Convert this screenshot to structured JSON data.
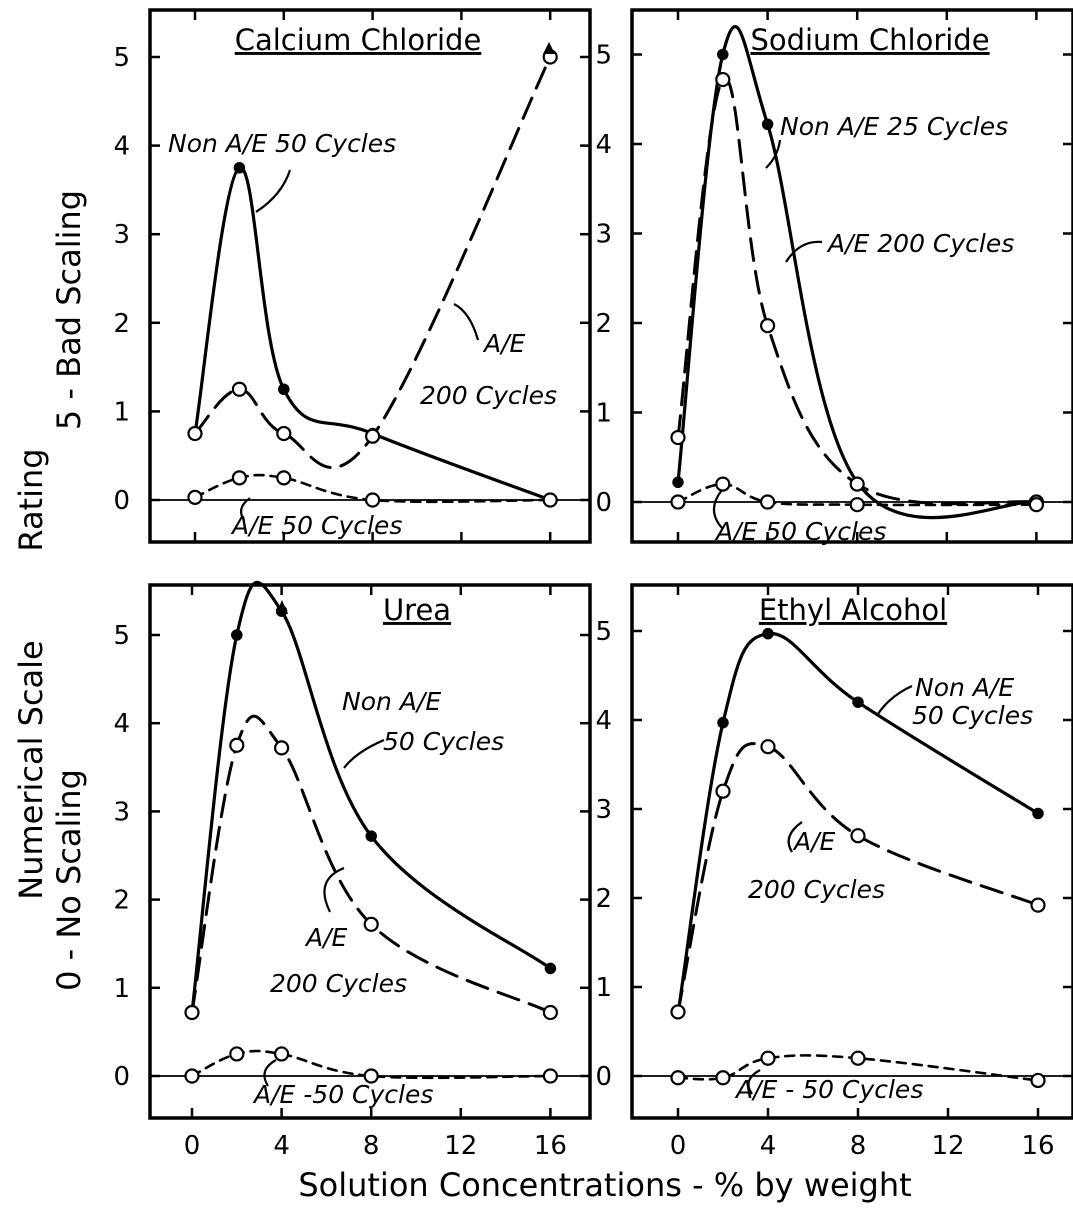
{
  "axes": {
    "xlabel": "Solution Concentrations - % by weight",
    "ylabel_lines": [
      "Rating",
      "5 - Bad Scaling",
      "Numerical Scale",
      "0 - No Scaling"
    ]
  },
  "chart_data": [
    {
      "type": "line",
      "title": "Calcium Chloride",
      "xlim": [
        -2,
        17
      ],
      "ylim": [
        -0.45,
        5.5
      ],
      "xticks": [
        0,
        4,
        8,
        12,
        16
      ],
      "yticks": [
        0,
        1,
        2,
        3,
        4,
        5
      ],
      "series": [
        {
          "name": "Non A/E 50 Cycles",
          "style": "solid",
          "marker": "filled",
          "x": [
            0,
            2,
            4,
            8,
            16
          ],
          "y": [
            0.75,
            3.75,
            1.25,
            0.75,
            0
          ]
        },
        {
          "name": "A/E 200 Cycles",
          "style": "long-dash",
          "marker": "open",
          "x": [
            0,
            2,
            4,
            8,
            16
          ],
          "y": [
            0.75,
            1.25,
            0.75,
            0.72,
            5.0
          ]
        },
        {
          "name": "A/E 50 Cycles",
          "style": "short-dash",
          "marker": "open",
          "x": [
            0,
            2,
            4,
            8,
            16
          ],
          "y": [
            0.03,
            0.25,
            0.25,
            0.0,
            0.0
          ]
        }
      ],
      "annotations": [
        "Non A/E 50 Cycles",
        "A/E",
        "200 Cycles",
        "A/E 50 Cycles"
      ]
    },
    {
      "type": "line",
      "title": "Sodium Chloride",
      "xlim": [
        -2,
        17
      ],
      "ylim": [
        -0.45,
        5.5
      ],
      "xticks": [
        0,
        4,
        8,
        12,
        16
      ],
      "yticks": [
        0,
        1,
        2,
        3,
        4,
        5
      ],
      "series": [
        {
          "name": "Non A/E 25 Cycles",
          "style": "solid",
          "marker": "filled",
          "x": [
            0,
            2,
            4,
            8,
            16
          ],
          "y": [
            0.22,
            5.0,
            4.22,
            0.22,
            0
          ]
        },
        {
          "name": "A/E 200 Cycles",
          "style": "long-dash",
          "marker": "open",
          "x": [
            0,
            2,
            4,
            8,
            16
          ],
          "y": [
            0.72,
            4.72,
            1.97,
            0.2,
            0
          ]
        },
        {
          "name": "A/E 50 Cycles",
          "style": "short-dash",
          "marker": "open",
          "x": [
            0,
            2,
            4,
            8,
            16
          ],
          "y": [
            0.0,
            0.2,
            0.0,
            -0.03,
            -0.03
          ]
        }
      ],
      "annotations": [
        "Non A/E 25 Cycles",
        "A/E 200 Cycles",
        "A/E 50 Cycles"
      ]
    },
    {
      "type": "line",
      "title": "Urea",
      "xlim": [
        -2,
        17
      ],
      "ylim": [
        -0.45,
        5.5
      ],
      "xticks": [
        0,
        4,
        8,
        12,
        16
      ],
      "yticks": [
        0,
        1,
        2,
        3,
        4,
        5
      ],
      "series": [
        {
          "name": "Non A/E 50 Cycles",
          "style": "solid",
          "marker": "filled",
          "x": [
            0,
            2,
            4,
            8,
            16
          ],
          "y": [
            0.72,
            5.0,
            5.27,
            2.72,
            1.22
          ]
        },
        {
          "name": "A/E 200 Cycles",
          "style": "long-dash",
          "marker": "open",
          "x": [
            0,
            2,
            4,
            8,
            16
          ],
          "y": [
            0.72,
            3.75,
            3.72,
            1.72,
            0.72
          ]
        },
        {
          "name": "A/E -50 Cycles",
          "style": "short-dash",
          "marker": "open",
          "x": [
            0,
            2,
            4,
            8,
            16
          ],
          "y": [
            0.0,
            0.25,
            0.25,
            0.0,
            0.0
          ]
        }
      ],
      "annotations": [
        "Non A/E",
        "50 Cycles",
        "A/E",
        "200 Cycles",
        "A/E -50 Cycles"
      ]
    },
    {
      "type": "line",
      "title": "Ethyl Alcohol",
      "xlim": [
        -2,
        17
      ],
      "ylim": [
        -0.45,
        5.5
      ],
      "xticks": [
        0,
        4,
        8,
        12,
        16
      ],
      "yticks": [
        0,
        1,
        2,
        3,
        4,
        5
      ],
      "series": [
        {
          "name": "Non A/E 50 Cycles",
          "style": "solid",
          "marker": "filled",
          "x": [
            0,
            2,
            4,
            8,
            16
          ],
          "y": [
            0.7,
            3.97,
            4.97,
            4.2,
            2.95
          ]
        },
        {
          "name": "A/E 200 Cycles",
          "style": "long-dash",
          "marker": "open",
          "x": [
            0,
            2,
            4,
            8,
            16
          ],
          "y": [
            0.72,
            3.2,
            3.7,
            2.7,
            1.92
          ]
        },
        {
          "name": "A/E - 50 Cycles",
          "style": "short-dash",
          "marker": "open",
          "x": [
            0,
            2,
            4,
            8,
            16
          ],
          "y": [
            -0.02,
            -0.02,
            0.2,
            0.2,
            -0.05
          ]
        }
      ],
      "annotations": [
        "Non A/E",
        "50 Cycles",
        "A/E",
        "200 Cycles",
        "A/E - 50 Cycles"
      ]
    }
  ]
}
